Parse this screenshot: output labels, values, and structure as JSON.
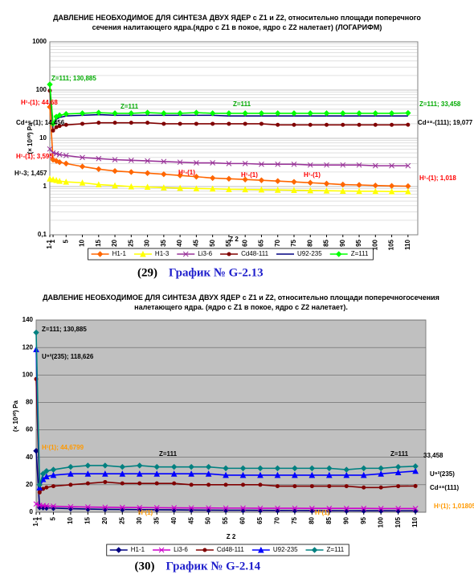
{
  "chart_data": [
    {
      "type": "line",
      "title": "ДАВЛЕНИЕ НЕОБХОДИМОЕ ДЛЯ СИНТЕЗА ДВУХ ЯДЕР с Z1 и Z2, относительно площади поперечного сечения налитающего ядра.(ядро с Z1 в покое, ядро с Z2 налетает) (ЛОГАРИФМ)",
      "x_label": "Z 2",
      "y_label": "(× 10³⁰) Pa",
      "caption_number": "(29)",
      "caption": "График № G-2.13",
      "log_y": true,
      "grid": true,
      "plot_background": "#ffffff",
      "xlim": [
        0,
        113
      ],
      "xticks": [
        {
          "value": 0,
          "label": "1-1"
        },
        1,
        5,
        10,
        15,
        20,
        25,
        30,
        35,
        40,
        45,
        50,
        55,
        60,
        65,
        70,
        75,
        80,
        85,
        90,
        95,
        100,
        105,
        110
      ],
      "ylim": [
        0.1,
        1000
      ],
      "yticks": [
        {
          "value": 0.1,
          "label": "0,1"
        },
        1,
        10,
        100,
        1000
      ],
      "x": [
        0,
        1,
        2,
        3,
        5,
        10,
        15,
        20,
        25,
        30,
        35,
        40,
        45,
        50,
        55,
        60,
        65,
        70,
        75,
        80,
        85,
        90,
        95,
        100,
        105,
        110
      ],
      "series": [
        {
          "name": "H1-1",
          "color": "#ff6600",
          "marker": "diamond",
          "values": [
            44.68,
            3.595,
            3.4,
            3.2,
            3,
            2.6,
            2.3,
            2.1,
            2,
            1.9,
            1.8,
            1.7,
            1.6,
            1.5,
            1.45,
            1.4,
            1.35,
            1.3,
            1.25,
            1.2,
            1.15,
            1.1,
            1.08,
            1.05,
            1.03,
            1.018
          ]
        },
        {
          "name": "H1-3",
          "color": "#ffff00",
          "marker": "triangle",
          "values": [
            1.457,
            1.4,
            1.35,
            1.3,
            1.25,
            1.2,
            1.1,
            1.05,
            1,
            0.98,
            0.95,
            0.93,
            0.91,
            0.9,
            0.88,
            0.87,
            0.86,
            0.85,
            0.84,
            0.83,
            0.82,
            0.81,
            0.8,
            0.8,
            0.79,
            0.79
          ]
        },
        {
          "name": "Li3-6",
          "color": "#993399",
          "marker": "x",
          "values": [
            6,
            5,
            4.8,
            4.6,
            4.4,
            4,
            3.8,
            3.6,
            3.5,
            3.4,
            3.3,
            3.2,
            3.1,
            3.1,
            3,
            3,
            2.9,
            2.9,
            2.9,
            2.8,
            2.8,
            2.8,
            2.8,
            2.7,
            2.7,
            2.7
          ]
        },
        {
          "name": "Cd48-111",
          "color": "#800000",
          "marker": "circle",
          "values": [
            97,
            14.456,
            17,
            18,
            19,
            20,
            21,
            21,
            21,
            21,
            20,
            20,
            20,
            20,
            20,
            20,
            20,
            19,
            19,
            19,
            19,
            19,
            19,
            19,
            19,
            19.077
          ]
        },
        {
          "name": "U92-235",
          "color": "#000080",
          "marker": "none",
          "values": [
            118.626,
            18,
            25,
            27,
            29,
            30,
            31,
            30,
            30,
            30,
            30,
            30,
            30,
            30,
            29,
            29,
            29,
            29,
            29,
            29,
            29,
            29,
            29,
            29,
            29,
            29
          ]
        },
        {
          "name": "Z=111",
          "color": "#00ff00",
          "marker": "diamond",
          "values": [
            130.885,
            20,
            28,
            30,
            32,
            33,
            34,
            33,
            33,
            34,
            33,
            33,
            34,
            33,
            33,
            33,
            33,
            33,
            33,
            33,
            33,
            33,
            33,
            33,
            33,
            33.458
          ]
        }
      ],
      "annotations": [
        {
          "text": "Z=111; 130,885",
          "color": "#00aa00"
        },
        {
          "text": "H¹-(1); 44,68",
          "color": "#ff0000"
        },
        {
          "text": "Cd⁴⁸-(1); 14,456",
          "color": "#000000"
        },
        {
          "text": "H¹-(1); 3,595",
          "color": "#ff0000"
        },
        {
          "text": "H¹-3; 1,457",
          "color": "#000000"
        },
        {
          "text": "Z=111",
          "color": "#00aa00"
        },
        {
          "text": "Z=111",
          "color": "#00aa00"
        },
        {
          "text": "Z=111; 33,458",
          "color": "#00aa00"
        },
        {
          "text": "Cd⁴⁸-(111); 19,077",
          "color": "#000000"
        },
        {
          "text": "H¹-(1)",
          "color": "#ff0000"
        },
        {
          "text": "H¹-(1)",
          "color": "#ff0000"
        },
        {
          "text": "H¹-(1)",
          "color": "#ff0000"
        },
        {
          "text": "H¹-(1); 1,018",
          "color": "#ff0000"
        }
      ]
    },
    {
      "type": "line",
      "title": "ДАВЛЕНИЕ НЕОБХОДИМОЕ ДЛЯ СИНТЕЗА ДВУХ ЯДЕР с Z1 и Z2, относительно площади поперечногосечения налетающего ядра. (ядро с Z1 в покое, ядро с Z2  налетает).",
      "x_label": "Z 2",
      "y_label": "(× 10³⁰) Pa",
      "caption_number": "(30)",
      "caption": "График № G-2.14",
      "log_y": false,
      "grid": true,
      "plot_background": "#c0c0c0",
      "xlim": [
        0,
        113
      ],
      "xticks": [
        {
          "value": 0,
          "label": "1-1"
        },
        1,
        5,
        10,
        15,
        20,
        25,
        30,
        35,
        40,
        45,
        50,
        55,
        60,
        65,
        70,
        75,
        80,
        85,
        90,
        95,
        100,
        105,
        110
      ],
      "ylim": [
        0,
        140
      ],
      "yticks": [
        0,
        20,
        40,
        60,
        80,
        100,
        120,
        140
      ],
      "x": [
        0,
        1,
        2,
        3,
        5,
        10,
        15,
        20,
        25,
        30,
        35,
        40,
        45,
        50,
        55,
        60,
        65,
        70,
        75,
        80,
        85,
        90,
        95,
        100,
        105,
        110
      ],
      "series": [
        {
          "name": "H1-1",
          "color": "#000080",
          "marker": "diamond",
          "values": [
            44.68,
            3.595,
            3.4,
            3.2,
            3,
            2.6,
            2.3,
            2.1,
            2,
            1.9,
            1.8,
            1.7,
            1.6,
            1.5,
            1.45,
            1.4,
            1.35,
            1.3,
            1.25,
            1.2,
            1.15,
            1.1,
            1.08,
            1.05,
            1.03,
            1.018
          ]
        },
        {
          "name": "Li3-6",
          "color": "#cc00cc",
          "marker": "x",
          "values": [
            6,
            5,
            4.8,
            4.6,
            4.4,
            4,
            3.8,
            3.6,
            3.5,
            3.4,
            3.3,
            3.2,
            3.1,
            3.1,
            3,
            3,
            2.9,
            2.9,
            2.9,
            2.8,
            2.8,
            2.8,
            2.8,
            2.7,
            2.7,
            2.7
          ]
        },
        {
          "name": "Cd48-111",
          "color": "#800000",
          "marker": "circle",
          "values": [
            97,
            14.456,
            17,
            18,
            19,
            20,
            21,
            22,
            21,
            21,
            21,
            21,
            20,
            20,
            20,
            20,
            20,
            19,
            19,
            19,
            19,
            19,
            18,
            18,
            19,
            19.077
          ]
        },
        {
          "name": "U92-235",
          "color": "#0000ff",
          "marker": "triangle",
          "values": [
            118.626,
            18,
            24,
            26,
            27,
            28,
            28,
            28,
            28,
            28,
            28,
            28,
            28,
            28,
            27,
            27,
            27,
            27,
            27,
            27,
            27,
            27,
            27,
            28,
            29,
            30
          ]
        },
        {
          "name": "Z=111",
          "color": "#008080",
          "marker": "diamond",
          "values": [
            130.885,
            20,
            28,
            30,
            31,
            33,
            34,
            34,
            33,
            34,
            33,
            33,
            33,
            33,
            32,
            32,
            32,
            32,
            32,
            32,
            32,
            31,
            32,
            32,
            33,
            33.458
          ]
        }
      ],
      "annotations": [
        {
          "text": "Z=111; 130,885",
          "color": "#000000"
        },
        {
          "text": "U⁹²(235); 118,626",
          "color": "#000000"
        },
        {
          "text": "H¹(1); 44,6799",
          "color": "#ff9900"
        },
        {
          "text": "Z=111",
          "color": "#000000"
        },
        {
          "text": "Z=111",
          "color": "#000000"
        },
        {
          "text": "33,458",
          "color": "#000000"
        },
        {
          "text": "U⁹²(235)",
          "color": "#000000"
        },
        {
          "text": "Cd⁴⁸(111)",
          "color": "#000000"
        },
        {
          "text": "H¹(1); 1,01805",
          "color": "#ff9900"
        },
        {
          "text": "H¹(1)",
          "color": "#ff9900"
        },
        {
          "text": "H¹(1)",
          "color": "#ff9900"
        }
      ]
    }
  ]
}
